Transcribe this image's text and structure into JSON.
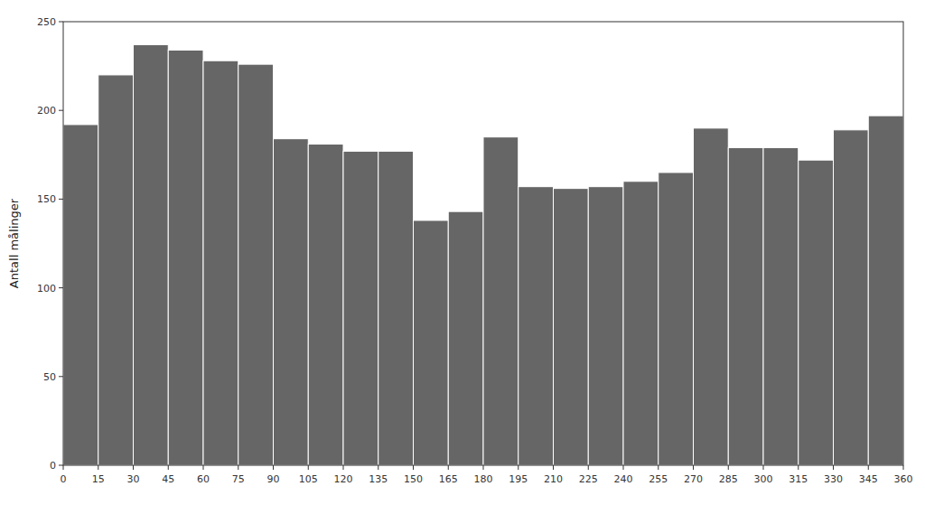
{
  "chart_data": {
    "type": "histogram",
    "bins": [
      0,
      15,
      30,
      45,
      60,
      75,
      90,
      105,
      120,
      135,
      150,
      165,
      180,
      195,
      210,
      225,
      240,
      255,
      270,
      285,
      300,
      315,
      330,
      345,
      360
    ],
    "values": [
      192,
      220,
      237,
      234,
      228,
      226,
      184,
      181,
      177,
      177,
      138,
      143,
      185,
      157,
      156,
      157,
      160,
      165,
      190,
      179,
      179,
      172,
      189,
      197
    ],
    "color": "#666666",
    "ylabel": "Antall målinger",
    "xlim": [
      0,
      360
    ],
    "xticks": [
      0,
      15,
      30,
      45,
      60,
      75,
      90,
      105,
      120,
      135,
      150,
      165,
      180,
      195,
      210,
      225,
      240,
      255,
      270,
      285,
      300,
      315,
      330,
      345,
      360
    ],
    "ylim": [
      0,
      250
    ],
    "yticks": [
      0,
      50,
      100,
      150,
      200,
      250
    ]
  }
}
